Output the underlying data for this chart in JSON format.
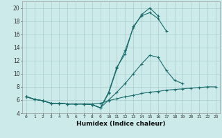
{
  "title": "",
  "xlabel": "Humidex (Indice chaleur)",
  "background_color": "#cceaea",
  "grid_color": "#aacccc",
  "line_color": "#1a6b6b",
  "xlim": [
    -0.5,
    23.5
  ],
  "ylim": [
    4,
    21
  ],
  "xticks": [
    0,
    1,
    2,
    3,
    4,
    5,
    6,
    7,
    8,
    9,
    10,
    11,
    12,
    13,
    14,
    15,
    16,
    17,
    18,
    19,
    20,
    21,
    22,
    23
  ],
  "yticks": [
    4,
    6,
    8,
    10,
    12,
    14,
    16,
    18,
    20
  ],
  "series": [
    {
      "x": [
        0,
        1,
        2,
        3,
        4,
        5,
        6,
        7,
        8,
        9,
        10,
        11,
        12,
        13,
        14,
        15,
        16,
        17
      ],
      "y": [
        6.5,
        6.1,
        5.9,
        5.5,
        5.5,
        5.4,
        5.4,
        5.4,
        5.3,
        4.8,
        7.2,
        11.0,
        13.0,
        17.2,
        18.8,
        19.3,
        18.4,
        16.5
      ]
    },
    {
      "x": [
        0,
        1,
        2,
        3,
        4,
        5,
        6,
        7,
        8,
        9,
        10,
        11,
        12,
        13,
        14,
        15,
        16
      ],
      "y": [
        6.5,
        6.1,
        5.9,
        5.5,
        5.5,
        5.4,
        5.4,
        5.4,
        5.3,
        4.8,
        7.0,
        10.8,
        13.5,
        17.0,
        19.0,
        20.0,
        18.8
      ]
    },
    {
      "x": [
        0,
        1,
        2,
        3,
        4,
        5,
        6,
        7,
        8,
        9,
        10,
        11,
        12,
        13,
        14,
        15,
        16,
        17,
        18,
        19
      ],
      "y": [
        6.5,
        6.1,
        5.9,
        5.5,
        5.5,
        5.4,
        5.4,
        5.4,
        5.3,
        4.8,
        6.0,
        7.2,
        8.5,
        10.0,
        11.5,
        12.8,
        12.5,
        10.5,
        9.0,
        8.5
      ]
    },
    {
      "x": [
        0,
        1,
        2,
        3,
        4,
        5,
        6,
        7,
        8,
        9,
        10,
        11,
        12,
        13,
        14,
        15,
        16,
        17,
        18,
        19,
        20,
        21,
        22,
        23
      ],
      "y": [
        6.5,
        6.1,
        5.9,
        5.5,
        5.5,
        5.4,
        5.4,
        5.4,
        5.4,
        5.5,
        5.9,
        6.2,
        6.5,
        6.7,
        7.0,
        7.2,
        7.3,
        7.5,
        7.6,
        7.7,
        7.8,
        7.9,
        8.0,
        8.0
      ]
    }
  ]
}
